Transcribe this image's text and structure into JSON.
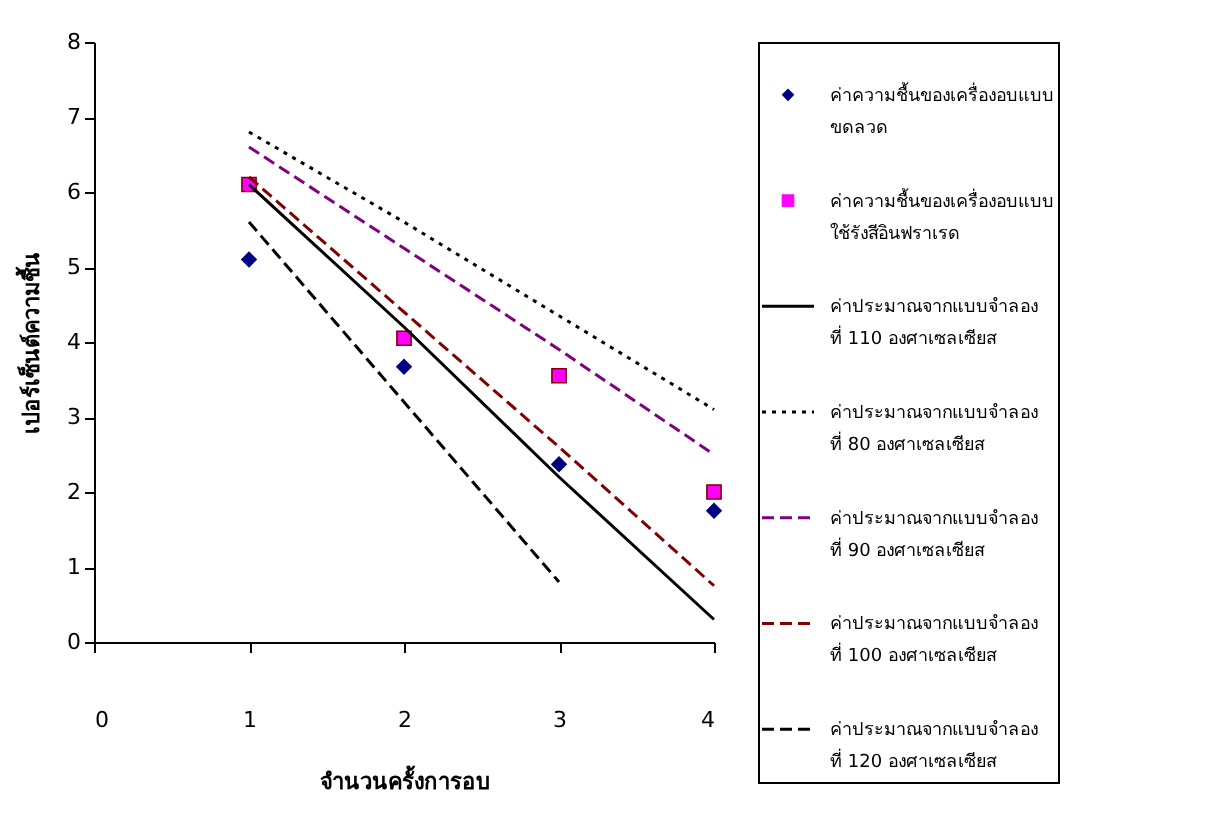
{
  "chart_data": {
    "type": "scatter",
    "xlabel": "จำนวนครั้งการอบ",
    "ylabel": "เปอร์เซ็นต์ความชื้น",
    "xlim": [
      0,
      4
    ],
    "xticks": [
      0,
      1,
      2,
      3,
      4
    ],
    "ylim": [
      0,
      8
    ],
    "yticks": [
      0,
      1,
      2,
      3,
      4,
      5,
      6,
      7,
      8
    ],
    "grid": false,
    "legend": "right",
    "series": [
      {
        "name": "ค่าความชื้นของเครื่องอบแบบขดลวด",
        "marker": "diamond",
        "color": "#000080",
        "x": [
          1,
          2,
          3,
          4
        ],
        "values": [
          5.1,
          3.67,
          2.37,
          1.75
        ]
      },
      {
        "name": "ค่าความชื้นของเครื่องอบแบบใช้รังสีอินฟราเรด",
        "marker": "square",
        "color": "#ff00ff",
        "x": [
          1,
          2,
          3,
          4
        ],
        "values": [
          6.1,
          4.05,
          3.55,
          2.0
        ]
      },
      {
        "name": "ค่าประมาณจากแบบจำลอง ที่ 110 องศาเซลเซียส",
        "type": "line",
        "line_style": "solid",
        "color": "#000000",
        "x": [
          1,
          2,
          3,
          4
        ],
        "values": [
          6.1,
          4.2,
          2.2,
          0.3
        ]
      },
      {
        "name": "ค่าประมาณจากแบบจำลอง ที่ 80 องศาเซลเซียส",
        "type": "line",
        "line_style": "dotted",
        "color": "#000000",
        "x": [
          1,
          2,
          3,
          4
        ],
        "values": [
          6.8,
          5.6,
          4.35,
          3.1
        ]
      },
      {
        "name": "ค่าประมาณจากแบบจำลอง ที่ 90 องศาเซลเซียส",
        "type": "line",
        "line_style": "dashed",
        "color": "#800080",
        "x": [
          1,
          2,
          3,
          4
        ],
        "values": [
          6.6,
          5.25,
          3.9,
          2.5
        ]
      },
      {
        "name": "ค่าประมาณจากแบบจำลอง ที่ 100 องศาเซลเซียส",
        "type": "line",
        "line_style": "dashed",
        "color": "#800000",
        "x": [
          1,
          2,
          3,
          4
        ],
        "values": [
          6.2,
          4.4,
          2.6,
          0.75
        ]
      },
      {
        "name": "ค่าประมาณจากแบบจำลอง ที่ 120 องศาเซลเซียส",
        "type": "line",
        "line_style": "dashed",
        "color": "#000000",
        "x": [
          1,
          2,
          3
        ],
        "values": [
          5.6,
          3.2,
          0.8
        ]
      }
    ]
  }
}
